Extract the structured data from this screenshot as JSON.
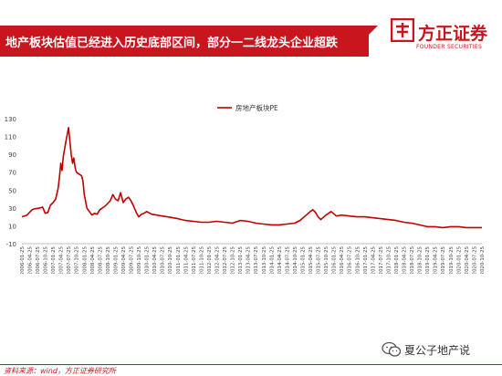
{
  "header": {
    "title": "地产板块估值已经进入历史底部区间，部分一二线龙头企业超跌"
  },
  "logo": {
    "name_cn": "方正证券",
    "name_en": "FOUNDER SECURITIES"
  },
  "footer": {
    "source": "资料来源：wind，方正证券研究所"
  },
  "watermark": {
    "text": "夏公子地产说",
    "icon": "wechat-icon"
  },
  "colors": {
    "accent": "#c9151e",
    "line": "#c00000"
  },
  "chart_data": {
    "type": "line",
    "title": "",
    "xlabel": "",
    "ylabel": "",
    "ylim": [
      -10,
      130
    ],
    "yticks": [
      -10,
      10,
      30,
      50,
      70,
      90,
      110,
      130
    ],
    "grid": false,
    "legend": "top-left",
    "x_tick_labels": [
      "2006-01-25",
      "2006-04-25",
      "2006-07-25",
      "2006-10-25",
      "2007-01-25",
      "2007-04-25",
      "2007-07-25",
      "2007-10-25",
      "2008-01-25",
      "2008-04-25",
      "2008-07-25",
      "2008-10-25",
      "2009-01-25",
      "2009-04-25",
      "2009-07-25",
      "2009-10-25",
      "2010-01-25",
      "2010-04-25",
      "2010-07-25",
      "2010-10-25",
      "2011-01-25",
      "2011-04-25",
      "2011-07-25",
      "2011-10-25",
      "2012-01-25",
      "2012-04-25",
      "2012-07-25",
      "2012-10-25",
      "2013-01-25",
      "2013-04-25",
      "2013-07-25",
      "2013-10-25",
      "2014-01-25",
      "2014-04-25",
      "2014-07-25",
      "2014-10-25",
      "2015-01-25",
      "2015-04-25",
      "2015-07-25",
      "2015-10-25",
      "2016-01-25",
      "2016-04-25",
      "2016-07-25",
      "2016-10-25",
      "2017-01-25",
      "2017-04-25",
      "2017-07-25",
      "2017-10-25",
      "2018-01-25",
      "2018-04-25",
      "2018-07-25",
      "2018-10-25",
      "2019-01-25",
      "2019-04-25",
      "2019-07-25",
      "2019-10-25",
      "2020-01-25",
      "2020-04-25",
      "2020-07-25",
      "2020-10-25"
    ],
    "series": [
      {
        "name": "房地产板块PE",
        "x": [
          "2006-01-25",
          "2006-03-25",
          "2006-05-25",
          "2006-06-25",
          "2006-08-25",
          "2006-09-25",
          "2006-10-25",
          "2006-11-25",
          "2006-12-25",
          "2007-01-25",
          "2007-02-25",
          "2007-03-25",
          "2007-04-10",
          "2007-04-25",
          "2007-05-10",
          "2007-05-25",
          "2007-06-25",
          "2007-07-25",
          "2007-08-25",
          "2007-09-10",
          "2007-09-25",
          "2007-10-10",
          "2007-10-25",
          "2007-11-25",
          "2007-12-25",
          "2008-01-10",
          "2008-01-25",
          "2008-02-25",
          "2008-03-25",
          "2008-04-25",
          "2008-05-25",
          "2008-06-25",
          "2008-07-25",
          "2008-08-25",
          "2008-09-25",
          "2008-10-25",
          "2008-11-25",
          "2008-12-25",
          "2009-01-25",
          "2009-02-25",
          "2009-03-25",
          "2009-04-25",
          "2009-05-25",
          "2009-06-25",
          "2009-07-25",
          "2009-08-25",
          "2009-09-25",
          "2009-10-25",
          "2009-11-25",
          "2009-12-25",
          "2010-01-25",
          "2010-03-25",
          "2010-05-25",
          "2010-07-25",
          "2010-09-25",
          "2010-11-25",
          "2011-01-25",
          "2011-04-25",
          "2011-07-25",
          "2011-10-25",
          "2012-01-25",
          "2012-04-25",
          "2012-07-25",
          "2012-10-25",
          "2013-01-25",
          "2013-04-25",
          "2013-07-25",
          "2013-10-25",
          "2014-01-25",
          "2014-04-25",
          "2014-07-25",
          "2014-10-25",
          "2014-12-25",
          "2015-02-25",
          "2015-04-25",
          "2015-05-25",
          "2015-06-25",
          "2015-07-25",
          "2015-08-25",
          "2015-10-25",
          "2015-12-25",
          "2016-02-25",
          "2016-04-25",
          "2016-07-25",
          "2016-10-25",
          "2017-01-25",
          "2017-04-25",
          "2017-07-25",
          "2017-10-25",
          "2018-01-25",
          "2018-04-25",
          "2018-07-25",
          "2018-10-25",
          "2019-01-25",
          "2019-04-25",
          "2019-07-25",
          "2019-10-25",
          "2020-01-25",
          "2020-04-25",
          "2020-07-25",
          "2020-10-25"
        ],
        "values": [
          20,
          22,
          28,
          29,
          30,
          31,
          24,
          25,
          33,
          36,
          40,
          52,
          65,
          80,
          72,
          88,
          105,
          120,
          90,
          80,
          86,
          75,
          70,
          68,
          66,
          60,
          45,
          30,
          26,
          22,
          24,
          23,
          28,
          30,
          32,
          35,
          38,
          45,
          40,
          38,
          47,
          36,
          40,
          42,
          38,
          32,
          25,
          20,
          23,
          24,
          26,
          23,
          22,
          21,
          20,
          19,
          18,
          16,
          15,
          14,
          14,
          15,
          14,
          13,
          16,
          15,
          13,
          12,
          11,
          11,
          12,
          13,
          16,
          21,
          26,
          28,
          25,
          20,
          17,
          22,
          26,
          21,
          22,
          21,
          20,
          20,
          19,
          18,
          17,
          16,
          14,
          13,
          11,
          9,
          9,
          8,
          9,
          9,
          8,
          8,
          8
        ]
      }
    ]
  }
}
